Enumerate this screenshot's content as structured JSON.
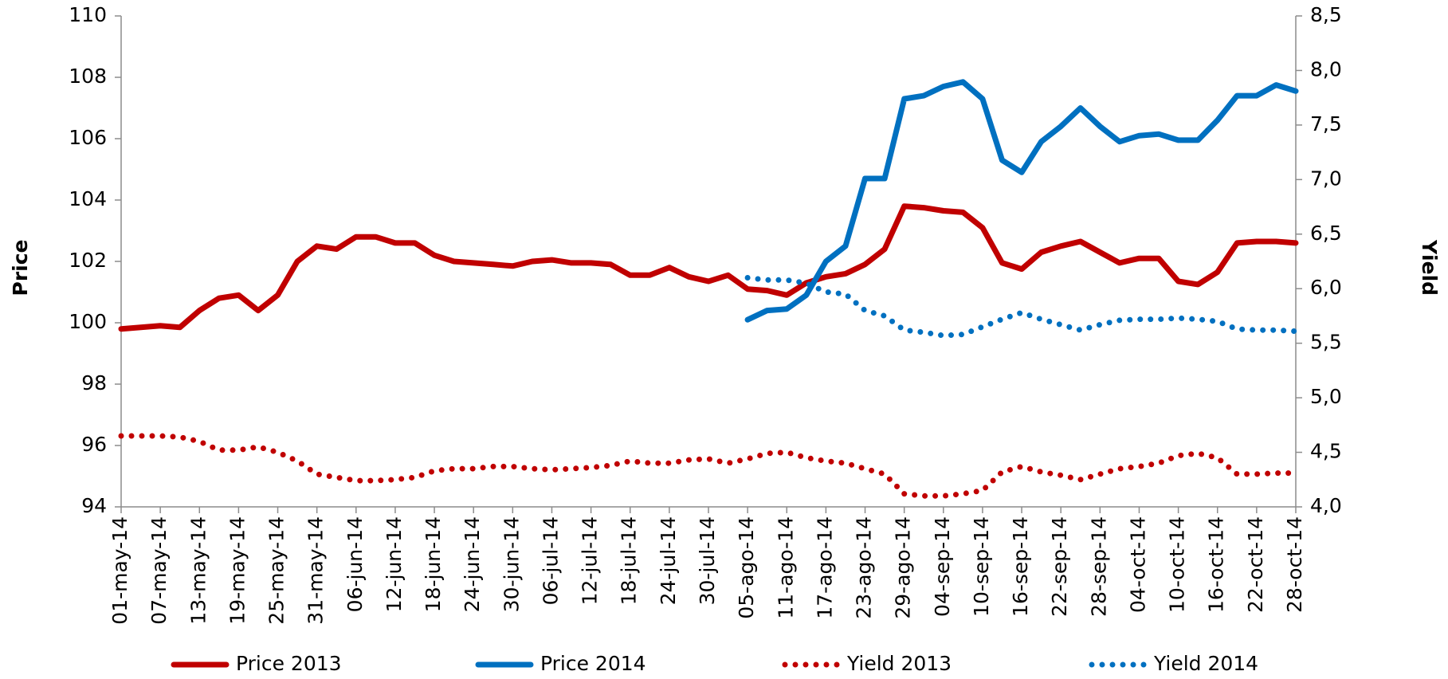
{
  "chart_data": {
    "type": "line",
    "y_label": "Price",
    "y2_label": "Yield",
    "categories": [
      "01-may-14",
      null,
      "07-may-14",
      null,
      "13-may-14",
      null,
      "19-may-14",
      null,
      "25-may-14",
      null,
      "31-may-14",
      null,
      "06-jun-14",
      null,
      "12-jun-14",
      null,
      "18-jun-14",
      null,
      "24-jun-14",
      null,
      "30-jun-14",
      null,
      "06-jul-14",
      null,
      "12-jul-14",
      null,
      "18-jul-14",
      null,
      "24-jul-14",
      null,
      "30-jul-14",
      null,
      "05-ago-14",
      null,
      "11-ago-14",
      null,
      "17-ago-14",
      null,
      "23-ago-14",
      null,
      "29-ago-14",
      null,
      "04-sep-14",
      null,
      "10-sep-14",
      null,
      "16-sep-14",
      null,
      "22-sep-14",
      null,
      "28-sep-14",
      null,
      "04-oct-14",
      null,
      "10-oct-14",
      null,
      "16-oct-14",
      null,
      "22-oct-14",
      null,
      "28-oct-14"
    ],
    "series": [
      {
        "name": "Price 2013",
        "color": "#c00000",
        "style": "solid",
        "values": [
          99.8,
          99.85,
          99.9,
          99.85,
          100.4,
          100.8,
          100.9,
          100.4,
          100.9,
          102.0,
          102.5,
          102.4,
          102.8,
          102.8,
          102.6,
          102.6,
          102.2,
          102.0,
          101.95,
          101.9,
          101.85,
          102.0,
          102.05,
          101.95,
          101.95,
          101.9,
          101.55,
          101.55,
          101.8,
          101.5,
          101.35,
          101.55,
          101.1,
          101.05,
          100.9,
          101.3,
          101.5,
          101.6,
          101.9,
          102.4,
          103.8,
          103.75,
          103.65,
          103.6,
          103.1,
          101.95,
          101.75,
          102.3,
          102.5,
          102.65,
          102.3,
          101.95,
          102.1,
          102.1,
          101.35,
          101.25,
          101.65,
          102.6,
          102.65,
          102.65,
          102.6
        ]
      },
      {
        "name": "Price 2014",
        "color": "#0070c0",
        "style": "solid",
        "values": [
          null,
          null,
          null,
          null,
          null,
          null,
          null,
          null,
          null,
          null,
          null,
          null,
          null,
          null,
          null,
          null,
          null,
          null,
          null,
          null,
          null,
          null,
          null,
          null,
          null,
          null,
          null,
          null,
          null,
          null,
          null,
          null,
          100.1,
          100.4,
          100.45,
          100.9,
          102.0,
          102.5,
          104.7,
          104.7,
          107.3,
          107.4,
          107.7,
          107.85,
          107.3,
          105.3,
          104.9,
          105.9,
          106.4,
          107.0,
          106.4,
          105.9,
          106.1,
          106.15,
          105.95,
          105.95,
          106.6,
          107.4,
          107.4,
          107.75,
          107.55
        ]
      },
      {
        "name": "Yield 2013",
        "color": "#c00000",
        "style": "dotted",
        "axis": "y2",
        "values": [
          4.65,
          4.65,
          4.65,
          4.64,
          4.6,
          4.52,
          4.52,
          4.55,
          4.5,
          4.42,
          4.3,
          4.27,
          4.24,
          4.24,
          4.25,
          4.27,
          4.33,
          4.35,
          4.35,
          4.37,
          4.37,
          4.35,
          4.34,
          4.35,
          4.36,
          4.38,
          4.42,
          4.4,
          4.4,
          4.43,
          4.44,
          4.4,
          4.44,
          4.49,
          4.5,
          4.45,
          4.42,
          4.4,
          4.35,
          4.3,
          4.12,
          4.1,
          4.1,
          4.12,
          4.15,
          4.32,
          4.37,
          4.32,
          4.29,
          4.25,
          4.3,
          4.35,
          4.37,
          4.4,
          4.47,
          4.49,
          4.45,
          4.3,
          4.3,
          4.31,
          4.31
        ]
      },
      {
        "name": "Yield 2014",
        "color": "#0070c0",
        "style": "dotted",
        "axis": "y2",
        "values": [
          null,
          null,
          null,
          null,
          null,
          null,
          null,
          null,
          null,
          null,
          null,
          null,
          null,
          null,
          null,
          null,
          null,
          null,
          null,
          null,
          null,
          null,
          null,
          null,
          null,
          null,
          null,
          null,
          null,
          null,
          null,
          null,
          6.1,
          6.08,
          6.08,
          6.05,
          5.97,
          5.95,
          5.8,
          5.75,
          5.62,
          5.6,
          5.57,
          5.58,
          5.65,
          5.72,
          5.78,
          5.72,
          5.67,
          5.62,
          5.67,
          5.71,
          5.72,
          5.72,
          5.73,
          5.72,
          5.7,
          5.63,
          5.62,
          5.62,
          5.61
        ]
      }
    ],
    "ylim": [
      94,
      110
    ],
    "yticks": [
      94,
      96,
      98,
      100,
      102,
      104,
      106,
      108,
      110
    ],
    "y2lim": [
      4,
      8.5
    ],
    "y2ticks": [
      {
        "value": 4,
        "label": "4,0"
      },
      {
        "value": 4.5,
        "label": "4,5"
      },
      {
        "value": 5,
        "label": "5,0"
      },
      {
        "value": 5.5,
        "label": "5,5"
      },
      {
        "value": 6,
        "label": "6,0"
      },
      {
        "value": 6.5,
        "label": "6,5"
      },
      {
        "value": 7,
        "label": "7,0"
      },
      {
        "value": 7.5,
        "label": "7,5"
      },
      {
        "value": 8,
        "label": "8,0"
      },
      {
        "value": 8.5,
        "label": "8,5"
      }
    ],
    "grid": false,
    "legend": "bottom"
  }
}
